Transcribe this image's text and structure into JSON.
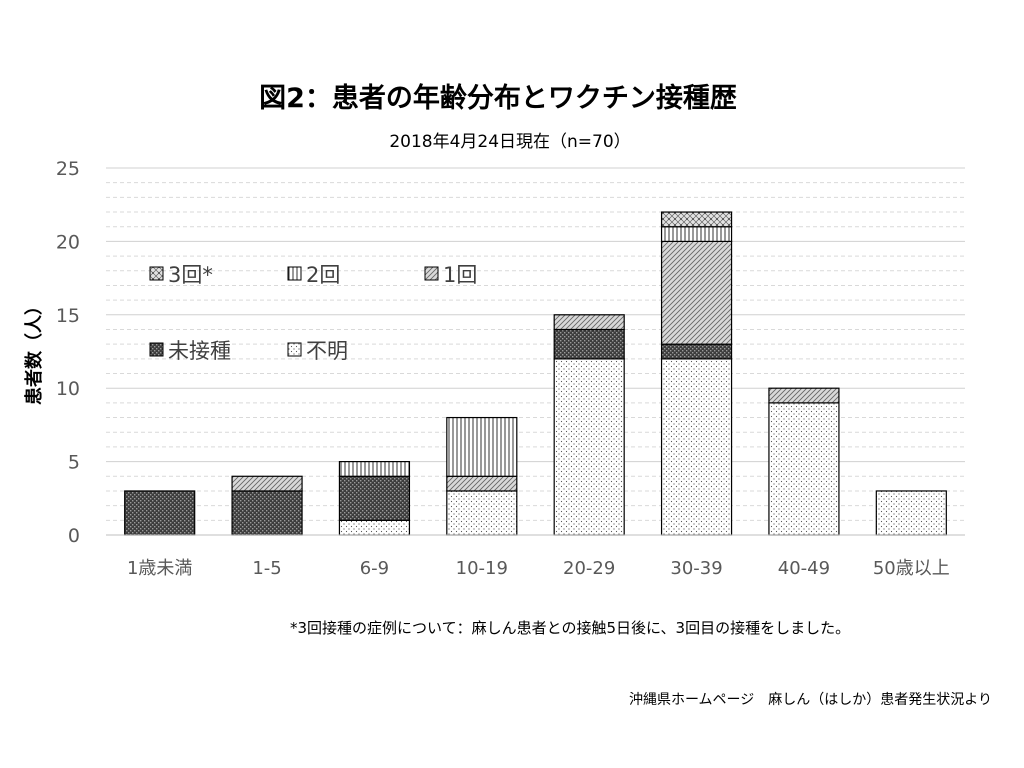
{
  "chart_data": {
    "type": "bar",
    "stacked": true,
    "title": "図2：患者の年齢分布とワクチン接種歴",
    "subtitle": "2018年4月24日現在（n=70）",
    "ylabel": "患者数（人）",
    "ylim": [
      0,
      25
    ],
    "yticks": [
      "0",
      "5",
      "10",
      "15",
      "20",
      "25"
    ],
    "grid": true,
    "legend_position": "upper-left inside",
    "categories": [
      "1歳未満",
      "1-5",
      "6-9",
      "10-19",
      "20-29",
      "30-39",
      "40-49",
      "50歳以上"
    ],
    "series": [
      {
        "name": "不明",
        "pattern": "dots",
        "values": [
          0,
          0,
          1,
          3,
          12,
          12,
          9,
          3
        ]
      },
      {
        "name": "未接種",
        "pattern": "dense-cross",
        "values": [
          3,
          3,
          3,
          0,
          2,
          1,
          0,
          0
        ]
      },
      {
        "name": "1回",
        "pattern": "diagonal",
        "values": [
          0,
          1,
          0,
          1,
          1,
          7,
          1,
          0
        ]
      },
      {
        "name": "2回",
        "pattern": "vertical",
        "values": [
          0,
          0,
          1,
          4,
          0,
          1,
          0,
          0
        ]
      },
      {
        "name": "3回*",
        "pattern": "zigzag",
        "values": [
          0,
          0,
          0,
          0,
          0,
          1,
          0,
          0
        ]
      }
    ]
  },
  "footnote": "*3回接種の症例について：麻しん患者との接触5日後に、3回目の接種をしました。",
  "source": "沖縄県ホームページ　麻しん（はしか）患者発生状況より"
}
